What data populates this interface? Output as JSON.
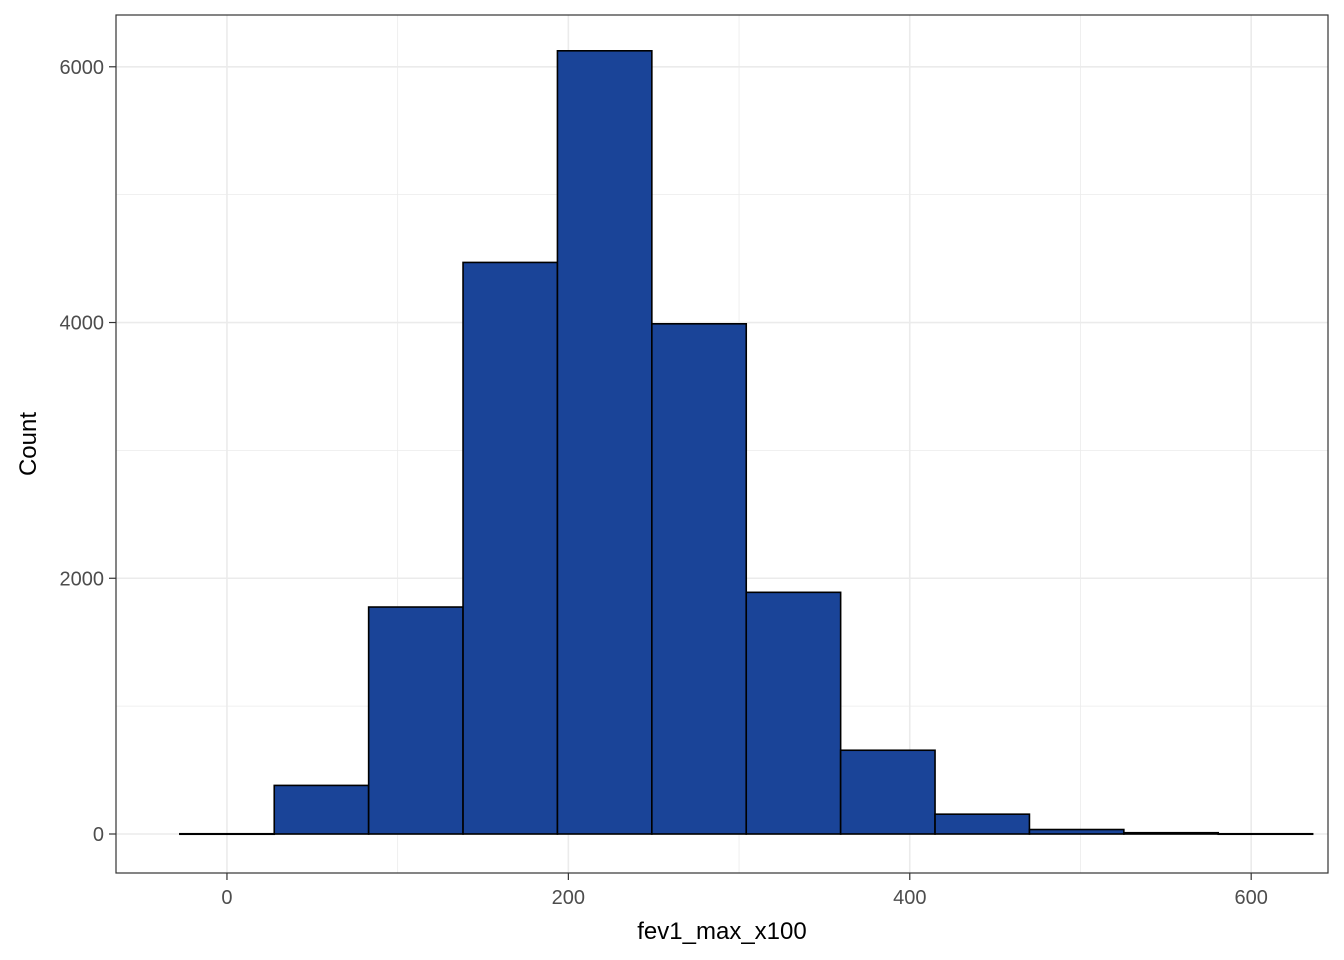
{
  "chart_data": {
    "type": "bar",
    "subtype": "histogram",
    "title": "",
    "xlabel": "fev1_max_x100",
    "ylabel": "Count",
    "xlim": [
      -65,
      645
    ],
    "ylim": [
      -305,
      6405
    ],
    "x_ticks": [
      0,
      200,
      400,
      600
    ],
    "y_ticks": [
      0,
      2000,
      4000,
      6000
    ],
    "x_tick_labels": [
      "0",
      "200",
      "400",
      "600"
    ],
    "y_tick_labels": [
      "0",
      "2000",
      "4000",
      "6000"
    ],
    "minor_gridlines": true,
    "major_gridlines": true,
    "bin_width": 55.3,
    "bins": [
      {
        "x0": -27.6,
        "x1": 27.7,
        "count": 2
      },
      {
        "x0": 27.7,
        "x1": 83.0,
        "count": 380
      },
      {
        "x0": 83.0,
        "x1": 138.3,
        "count": 1775
      },
      {
        "x0": 138.3,
        "x1": 193.6,
        "count": 4470
      },
      {
        "x0": 193.6,
        "x1": 248.9,
        "count": 6125
      },
      {
        "x0": 248.9,
        "x1": 304.2,
        "count": 3990
      },
      {
        "x0": 304.2,
        "x1": 359.5,
        "count": 1890
      },
      {
        "x0": 359.5,
        "x1": 414.8,
        "count": 655
      },
      {
        "x0": 414.8,
        "x1": 470.1,
        "count": 155
      },
      {
        "x0": 470.1,
        "x1": 525.4,
        "count": 35
      },
      {
        "x0": 525.4,
        "x1": 580.7,
        "count": 10
      },
      {
        "x0": 580.7,
        "x1": 636.0,
        "count": 2
      }
    ],
    "colors": {
      "fill": "#1A4498",
      "outline": "#000000",
      "grid": "#EBEBEB",
      "panel_border": "#333333",
      "tick_text": "#4D4D4D"
    }
  }
}
